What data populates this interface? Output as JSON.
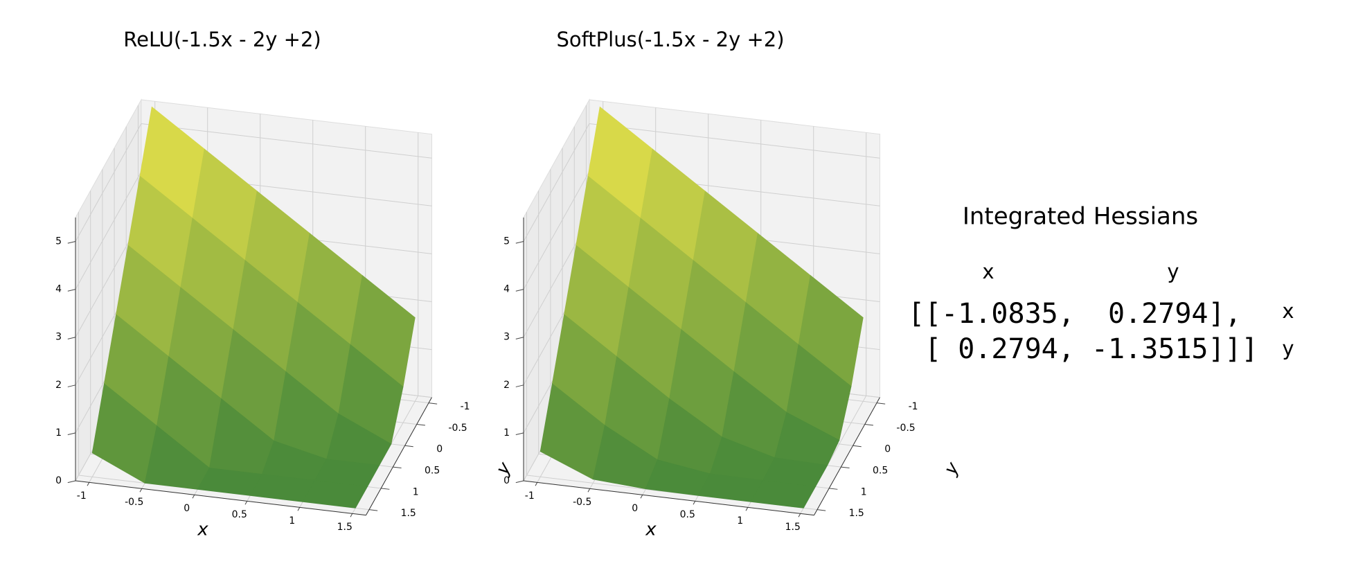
{
  "chart_data": [
    {
      "type": "surface3d",
      "title": "ReLU(-1.5x - 2y +2)",
      "xlabel": "x",
      "ylabel": "y",
      "x": [
        -1.0,
        -0.5,
        0.0,
        0.5,
        1.0,
        1.5
      ],
      "y": [
        -1.0,
        -0.5,
        0.0,
        0.5,
        1.0,
        1.5
      ],
      "z": [
        [
          5.5,
          4.5,
          3.5,
          2.5,
          1.5,
          0.5
        ],
        [
          4.75,
          3.75,
          2.75,
          1.75,
          0.75,
          0
        ],
        [
          4,
          3,
          2,
          1,
          0,
          0
        ],
        [
          3.25,
          2.25,
          1.25,
          0.25,
          0,
          0
        ],
        [
          2.5,
          1.5,
          0.5,
          0,
          0,
          0
        ],
        [
          1.75,
          0.75,
          0,
          0,
          0,
          0
        ]
      ],
      "xlim": [
        -1.13,
        1.63
      ],
      "ylim": [
        -1.13,
        1.63
      ],
      "zlim": [
        0,
        5.5
      ],
      "xticks": [
        -1.0,
        -0.5,
        0.0,
        0.5,
        1.0,
        1.5
      ],
      "yticks": [
        -1.0,
        -0.5,
        0.0,
        0.5,
        1.0,
        1.5
      ],
      "zticks": [
        0,
        1,
        2,
        3,
        4,
        5
      ],
      "colors": [
        "#4a8a3a",
        "#f3e84c"
      ],
      "grid": true
    },
    {
      "type": "surface3d",
      "title": "SoftPlus(-1.5x - 2y +2)",
      "xlabel": "x",
      "ylabel": "y",
      "x": [
        -1.0,
        -0.5,
        0.0,
        0.5,
        1.0,
        1.5
      ],
      "y": [
        -1.0,
        -0.5,
        0.0,
        0.5,
        1.0,
        1.5
      ],
      "z": [
        [
          5.5,
          4.5,
          3.5,
          2.5,
          1.5,
          0.53
        ],
        [
          4.75,
          3.75,
          2.75,
          1.75,
          0.76,
          0.08
        ],
        [
          4,
          3,
          2,
          1,
          0.17,
          0.01
        ],
        [
          3.25,
          2.25,
          1.25,
          0.33,
          0.01,
          0
        ],
        [
          2.5,
          1.5,
          0.53,
          0.03,
          0,
          0
        ],
        [
          1.75,
          0.76,
          0.08,
          0,
          0,
          0
        ]
      ],
      "xlim": [
        -1.13,
        1.63
      ],
      "ylim": [
        -1.13,
        1.63
      ],
      "zlim": [
        0,
        5.5
      ],
      "xticks": [
        -1.0,
        -0.5,
        0.0,
        0.5,
        1.0,
        1.5
      ],
      "yticks": [
        -1.0,
        -0.5,
        0.0,
        0.5,
        1.0,
        1.5
      ],
      "zticks": [
        0,
        1,
        2,
        3,
        4,
        5
      ],
      "colors": [
        "#4a8a3a",
        "#f3e84c"
      ],
      "grid": true
    }
  ],
  "hessian": {
    "title": "Integrated Hessians",
    "column_labels": [
      "x",
      "y"
    ],
    "row_labels": [
      "x",
      "y"
    ],
    "rows": [
      "[[-1.0835,  0.2794],",
      " [ 0.2794, -1.3515]]]"
    ]
  }
}
